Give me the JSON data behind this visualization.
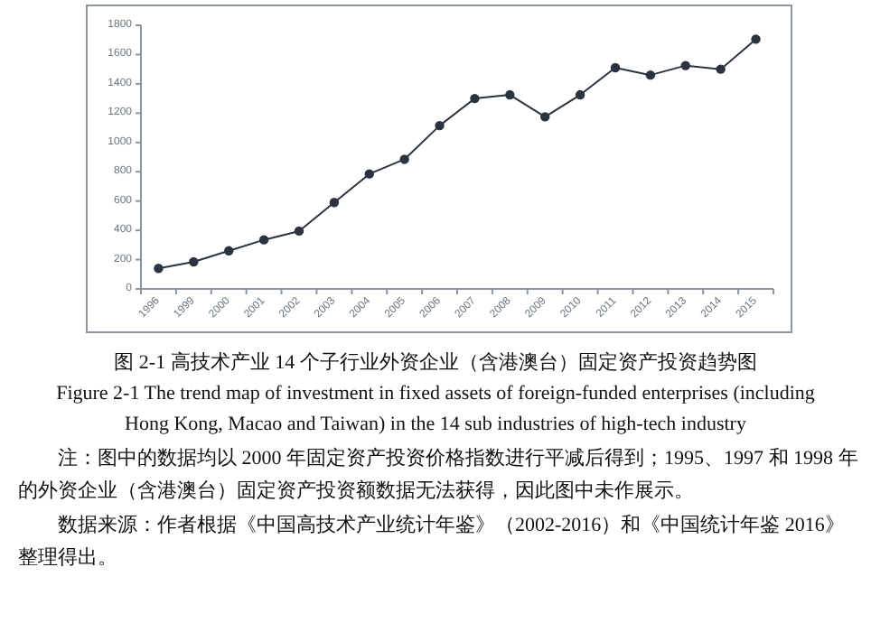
{
  "chart_data": {
    "type": "line",
    "title": "图 2-1 高技术产业 14 个子行业外资企业（含港澳台）固定资产投资趋势图",
    "subtitle": "Figure 2-1 The trend map of investment in fixed assets of foreign-funded enterprises (including Hong Kong, Macao and Taiwan) in the 14 sub industries of high-tech industry",
    "annotations": [
      "注：图中的数据均以 2000 年固定资产投资价格指数进行平减后得到；1995、1997 和 1998 年的外资企业（含港澳台）固定资产投资额数据无法获得，因此图中未作展示。",
      "数据来源：作者根据《中国高技术产业统计年鉴》（2002-2016）和《中国统计年鉴 2016》整理得出。"
    ],
    "categories": [
      "1996",
      "1999",
      "2000",
      "2001",
      "2002",
      "2003",
      "2004",
      "2005",
      "2006",
      "2007",
      "2008",
      "2009",
      "2010",
      "2011",
      "2012",
      "2013",
      "2014",
      "2015"
    ],
    "series": [
      {
        "color": "#2a3440",
        "values": [
          140,
          185,
          260,
          335,
          395,
          590,
          785,
          885,
          1115,
          1300,
          1325,
          1175,
          1325,
          1510,
          1460,
          1525,
          1500,
          1705
        ]
      }
    ],
    "ylim": [
      0,
      1800
    ],
    "yticks": [
      0,
      200,
      400,
      600,
      800,
      1000,
      1200,
      1400,
      1600,
      1800
    ],
    "marker": "circle",
    "line_style": "solid",
    "grid": false
  }
}
